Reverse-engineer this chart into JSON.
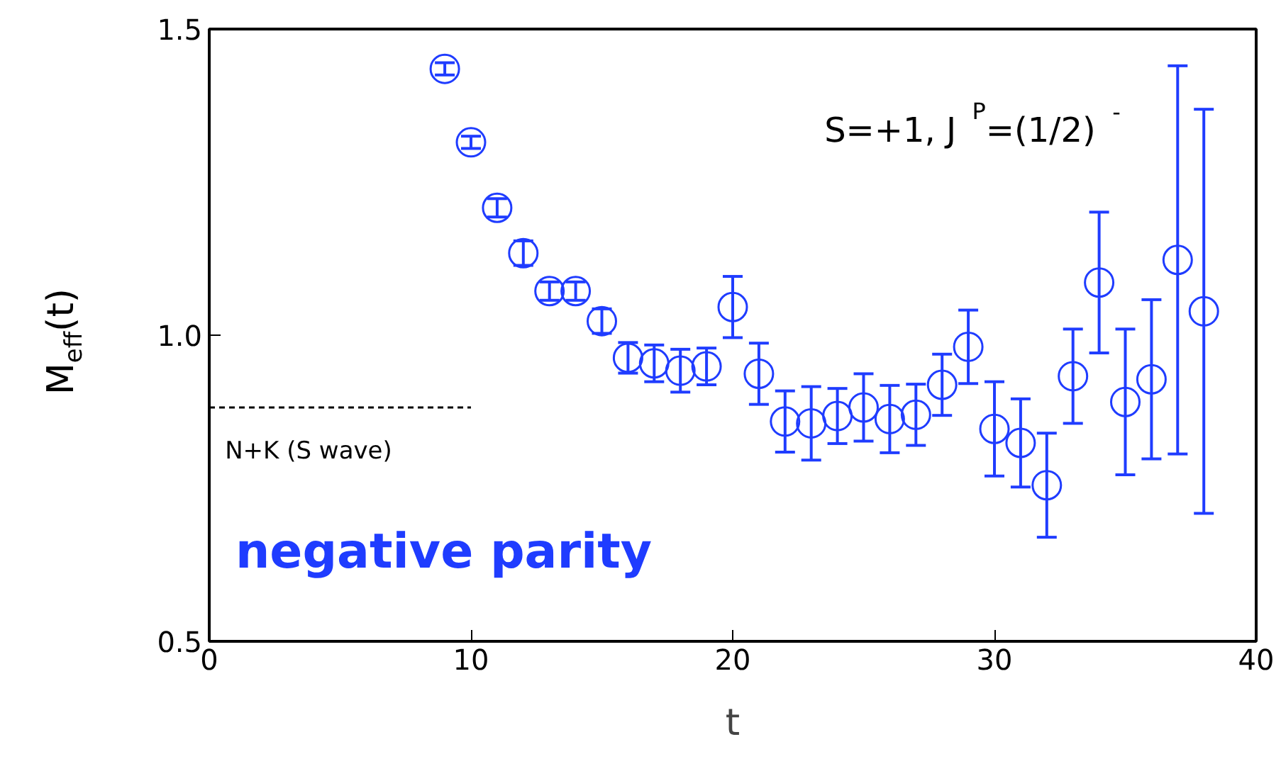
{
  "chart_data": {
    "type": "scatter",
    "xlabel": "t",
    "ylabel": "M$_{eff}$(t)",
    "xlim": [
      0,
      40
    ],
    "ylim": [
      0.5,
      1.5
    ],
    "xticks": [
      0,
      10,
      20,
      30,
      40
    ],
    "yticks": [
      {
        "value": 0.5,
        "label": "0.5"
      },
      {
        "value": 1.0,
        "label": "1.0"
      },
      {
        "value": 1.5,
        "label": "1.5"
      }
    ],
    "annotations": [
      "S=+1, J$^{P}$=(1/2)$^{-}$",
      "negative parity"
    ],
    "series": [
      {
        "marker": "circle",
        "color": "#1f3cff",
        "x": [
          9,
          10,
          11,
          12,
          13,
          14,
          15,
          16,
          17,
          18,
          19,
          20,
          21,
          22,
          23,
          24,
          25,
          26,
          27,
          28,
          29,
          30,
          31,
          32,
          33,
          34,
          35,
          36,
          37,
          38
        ],
        "values": [
          1.435,
          1.315,
          1.208,
          1.134,
          1.072,
          1.072,
          1.023,
          0.963,
          0.954,
          0.942,
          0.949,
          1.046,
          0.937,
          0.859,
          0.856,
          0.868,
          0.882,
          0.863,
          0.87,
          0.919,
          0.981,
          0.847,
          0.824,
          0.755,
          0.933,
          1.086,
          0.891,
          0.928,
          1.123,
          1.039
        ],
        "errors": [
          0.01,
          0.01,
          0.015,
          0.02,
          0.015,
          0.015,
          0.02,
          0.025,
          0.03,
          0.035,
          0.03,
          0.05,
          0.05,
          0.05,
          0.06,
          0.045,
          0.055,
          0.055,
          0.05,
          0.05,
          0.06,
          0.077,
          0.072,
          0.085,
          0.077,
          0.115,
          0.119,
          0.13,
          0.317,
          0.33
        ]
      },
      {
        "type": "line",
        "name": "N+K (S wave)",
        "color": "#000000",
        "line_style": "dashed",
        "x": [
          0,
          10
        ],
        "values": [
          0.882,
          0.882
        ]
      }
    ]
  }
}
